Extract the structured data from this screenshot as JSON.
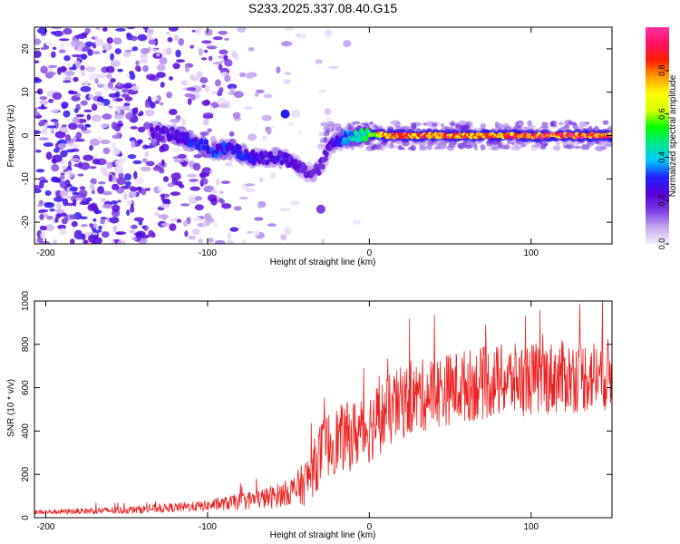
{
  "title": "S233.2025.337.08.40.G15",
  "chart_data": [
    {
      "type": "heatmap",
      "xlabel": "Height of straight line (km)",
      "ylabel": "Frequency (Hz)",
      "xlim": [
        -207,
        150
      ],
      "ylim": [
        -25,
        25
      ],
      "xticks": [
        -200,
        -100,
        0,
        100
      ],
      "yticks": [
        -20,
        -10,
        0,
        10,
        20
      ],
      "colorbar": {
        "label": "Normalized spectral amplitude",
        "range": [
          0.0,
          1.0
        ],
        "ticks": [
          0.0,
          0.2,
          0.4,
          0.6,
          0.8
        ],
        "tick_labels": [
          "0.0",
          "0.2",
          "0.4",
          "0.6",
          "0.8"
        ],
        "colors": [
          "#f4eefc",
          "#c8a8f0",
          "#7a3be0",
          "#5a00d8",
          "#2020ff",
          "#00c8ff",
          "#00e890",
          "#00ff00",
          "#d8ff00",
          "#ffff00",
          "#ffa000",
          "#ff2000",
          "#ff1060",
          "#ff30a0"
        ]
      },
      "ridge": [
        {
          "x": -135,
          "f": 1,
          "a": 0.2
        },
        {
          "x": -120,
          "f": 0,
          "a": 0.25
        },
        {
          "x": -105,
          "f": -2,
          "a": 0.3
        },
        {
          "x": -95,
          "f": -3.5,
          "a": 0.3
        },
        {
          "x": -85,
          "f": -3,
          "a": 0.3
        },
        {
          "x": -75,
          "f": -5,
          "a": 0.28
        },
        {
          "x": -65,
          "f": -5,
          "a": 0.25
        },
        {
          "x": -55,
          "f": -5,
          "a": 0.25
        },
        {
          "x": -45,
          "f": -7,
          "a": 0.22
        },
        {
          "x": -35,
          "f": -9,
          "a": 0.2
        },
        {
          "x": -30,
          "f": -7,
          "a": 0.2
        },
        {
          "x": -25,
          "f": -3,
          "a": 0.2
        },
        {
          "x": -20,
          "f": -1,
          "a": 0.3
        },
        {
          "x": -10,
          "f": 0,
          "a": 0.4
        },
        {
          "x": 0,
          "f": 0.5,
          "a": 0.55
        },
        {
          "x": 10,
          "f": 0,
          "a": 0.8
        },
        {
          "x": 30,
          "f": 0,
          "a": 0.85
        },
        {
          "x": 50,
          "f": 0,
          "a": 0.85
        },
        {
          "x": 70,
          "f": 0,
          "a": 0.8
        },
        {
          "x": 90,
          "f": 0,
          "a": 0.85
        },
        {
          "x": 100,
          "f": 0,
          "a": 0.9
        },
        {
          "x": 120,
          "f": 0,
          "a": 0.9
        },
        {
          "x": 150,
          "f": 0,
          "a": 0.9
        }
      ],
      "spurs": [
        {
          "x": -52,
          "f": 5,
          "a": 0.3
        },
        {
          "x": -30,
          "f": -17,
          "a": 0.15
        }
      ]
    },
    {
      "type": "line",
      "xlabel": "Height of straight line (km)",
      "ylabel": "SNR (10 * v/v)",
      "xlim": [
        -207,
        150
      ],
      "ylim": [
        0,
        1000
      ],
      "xticks": [
        -200,
        -100,
        0,
        100
      ],
      "yticks": [
        0,
        200,
        400,
        600,
        800,
        1000
      ],
      "color": "#ee2222",
      "baseline": [
        {
          "x": -207,
          "y": 25
        },
        {
          "x": -150,
          "y": 35
        },
        {
          "x": -100,
          "y": 55
        },
        {
          "x": -80,
          "y": 75
        },
        {
          "x": -60,
          "y": 95
        },
        {
          "x": -45,
          "y": 130
        },
        {
          "x": -40,
          "y": 160
        },
        {
          "x": -35,
          "y": 220
        },
        {
          "x": -30,
          "y": 300
        },
        {
          "x": -25,
          "y": 340
        },
        {
          "x": -20,
          "y": 360
        },
        {
          "x": -10,
          "y": 380
        },
        {
          "x": 0,
          "y": 420
        },
        {
          "x": 10,
          "y": 480
        },
        {
          "x": 20,
          "y": 530
        },
        {
          "x": 40,
          "y": 580
        },
        {
          "x": 60,
          "y": 610
        },
        {
          "x": 80,
          "y": 630
        },
        {
          "x": 100,
          "y": 640
        },
        {
          "x": 120,
          "y": 650
        },
        {
          "x": 150,
          "y": 660
        }
      ],
      "noise": [
        {
          "x": -207,
          "amp": 10
        },
        {
          "x": -100,
          "amp": 25
        },
        {
          "x": -50,
          "amp": 60
        },
        {
          "x": -30,
          "amp": 150
        },
        {
          "x": 0,
          "amp": 170
        },
        {
          "x": 50,
          "amp": 170
        },
        {
          "x": 150,
          "amp": 170
        }
      ]
    }
  ]
}
